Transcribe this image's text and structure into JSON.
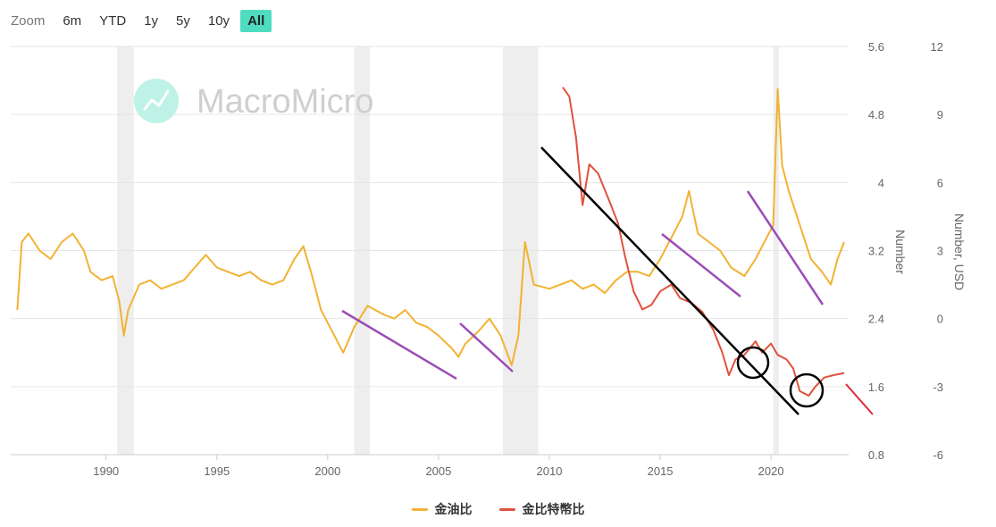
{
  "zoom": {
    "label": "Zoom",
    "buttons": [
      "6m",
      "YTD",
      "1y",
      "5y",
      "10y",
      "All"
    ],
    "active": "All"
  },
  "watermark": "MacroMicro",
  "colors": {
    "gold_oil": "#f2b233",
    "gold_btc": "#e0523d",
    "trend_black": "#000000",
    "trend_purple": "#9b4db5",
    "recession": "#eeeeee",
    "accent": "#4fdcc1"
  },
  "chart_data": {
    "type": "line",
    "x_ticks": [
      1990,
      1995,
      2000,
      2005,
      2010,
      2015,
      2020
    ],
    "x_range": [
      1985.7,
      2023.5
    ],
    "axes": {
      "left": {
        "label": "Number",
        "ticks": [
          5.6,
          4.8,
          4,
          3.2,
          2.4,
          1.6,
          0.8
        ],
        "range": [
          0.8,
          5.6
        ]
      },
      "right": {
        "label": "Number, USD",
        "ticks": [
          12,
          9,
          6,
          3,
          0,
          -3,
          -6
        ],
        "range": [
          -6,
          12
        ]
      }
    },
    "recession_bands": [
      [
        1990.5,
        1991.25
      ],
      [
        2001.2,
        2001.9
      ],
      [
        2007.9,
        2009.5
      ],
      [
        2020.1,
        2020.35
      ]
    ],
    "series": [
      {
        "name": "金油比",
        "axis": "left",
        "points": [
          [
            1986.0,
            2.5
          ],
          [
            1986.2,
            3.3
          ],
          [
            1986.5,
            3.4
          ],
          [
            1987.0,
            3.2
          ],
          [
            1987.5,
            3.1
          ],
          [
            1988.0,
            3.3
          ],
          [
            1988.5,
            3.4
          ],
          [
            1989.0,
            3.2
          ],
          [
            1989.3,
            2.95
          ],
          [
            1989.8,
            2.85
          ],
          [
            1990.3,
            2.9
          ],
          [
            1990.6,
            2.6
          ],
          [
            1990.8,
            2.2
          ],
          [
            1991.0,
            2.5
          ],
          [
            1991.5,
            2.8
          ],
          [
            1992.0,
            2.85
          ],
          [
            1992.5,
            2.75
          ],
          [
            1993.0,
            2.8
          ],
          [
            1993.5,
            2.85
          ],
          [
            1994.0,
            3.0
          ],
          [
            1994.5,
            3.15
          ],
          [
            1995.0,
            3.0
          ],
          [
            1995.5,
            2.95
          ],
          [
            1996.0,
            2.9
          ],
          [
            1996.5,
            2.95
          ],
          [
            1997.0,
            2.85
          ],
          [
            1997.5,
            2.8
          ],
          [
            1998.0,
            2.85
          ],
          [
            1998.5,
            3.1
          ],
          [
            1998.9,
            3.25
          ],
          [
            1999.3,
            2.9
          ],
          [
            1999.7,
            2.5
          ],
          [
            2000.3,
            2.2
          ],
          [
            2000.7,
            2.0
          ],
          [
            2001.2,
            2.3
          ],
          [
            2001.8,
            2.55
          ],
          [
            2002.5,
            2.45
          ],
          [
            2003.0,
            2.4
          ],
          [
            2003.5,
            2.5
          ],
          [
            2004.0,
            2.35
          ],
          [
            2004.5,
            2.3
          ],
          [
            2005.0,
            2.2
          ],
          [
            2005.6,
            2.05
          ],
          [
            2005.9,
            1.95
          ],
          [
            2006.2,
            2.1
          ],
          [
            2006.8,
            2.25
          ],
          [
            2007.3,
            2.4
          ],
          [
            2007.8,
            2.2
          ],
          [
            2008.3,
            1.85
          ],
          [
            2008.6,
            2.2
          ],
          [
            2008.9,
            3.3
          ],
          [
            2009.3,
            2.8
          ],
          [
            2010.0,
            2.75
          ],
          [
            2010.5,
            2.8
          ],
          [
            2011.0,
            2.85
          ],
          [
            2011.5,
            2.75
          ],
          [
            2012.0,
            2.8
          ],
          [
            2012.5,
            2.7
          ],
          [
            2013.0,
            2.85
          ],
          [
            2013.5,
            2.95
          ],
          [
            2014.0,
            2.95
          ],
          [
            2014.5,
            2.9
          ],
          [
            2015.0,
            3.1
          ],
          [
            2015.5,
            3.35
          ],
          [
            2016.0,
            3.6
          ],
          [
            2016.3,
            3.9
          ],
          [
            2016.7,
            3.4
          ],
          [
            2017.2,
            3.3
          ],
          [
            2017.7,
            3.2
          ],
          [
            2018.2,
            3.0
          ],
          [
            2018.8,
            2.9
          ],
          [
            2019.3,
            3.1
          ],
          [
            2019.8,
            3.35
          ],
          [
            2020.1,
            3.5
          ],
          [
            2020.3,
            5.1
          ],
          [
            2020.5,
            4.2
          ],
          [
            2020.8,
            3.9
          ],
          [
            2021.3,
            3.5
          ],
          [
            2021.8,
            3.1
          ],
          [
            2022.3,
            2.95
          ],
          [
            2022.7,
            2.8
          ],
          [
            2023.0,
            3.1
          ],
          [
            2023.3,
            3.3
          ]
        ]
      },
      {
        "name": "金比特幣比",
        "axis": "right",
        "points": [
          [
            2010.6,
            10.2
          ],
          [
            2010.9,
            9.8
          ],
          [
            2011.2,
            8.0
          ],
          [
            2011.5,
            5.0
          ],
          [
            2011.8,
            6.8
          ],
          [
            2012.2,
            6.4
          ],
          [
            2012.7,
            5.2
          ],
          [
            2013.1,
            4.2
          ],
          [
            2013.4,
            2.8
          ],
          [
            2013.8,
            1.2
          ],
          [
            2014.2,
            0.4
          ],
          [
            2014.6,
            0.6
          ],
          [
            2015.0,
            1.2
          ],
          [
            2015.5,
            1.5
          ],
          [
            2015.9,
            0.9
          ],
          [
            2016.4,
            0.7
          ],
          [
            2016.9,
            0.3
          ],
          [
            2017.4,
            -0.5
          ],
          [
            2017.8,
            -1.5
          ],
          [
            2018.1,
            -2.5
          ],
          [
            2018.4,
            -1.8
          ],
          [
            2018.8,
            -1.6
          ],
          [
            2019.3,
            -1.0
          ],
          [
            2019.6,
            -1.5
          ],
          [
            2020.0,
            -1.1
          ],
          [
            2020.3,
            -1.6
          ],
          [
            2020.7,
            -1.8
          ],
          [
            2021.0,
            -2.2
          ],
          [
            2021.3,
            -3.2
          ],
          [
            2021.7,
            -3.4
          ],
          [
            2022.0,
            -3.0
          ],
          [
            2022.4,
            -2.6
          ],
          [
            2022.8,
            -2.5
          ],
          [
            2023.3,
            -2.4
          ]
        ]
      }
    ]
  }
}
